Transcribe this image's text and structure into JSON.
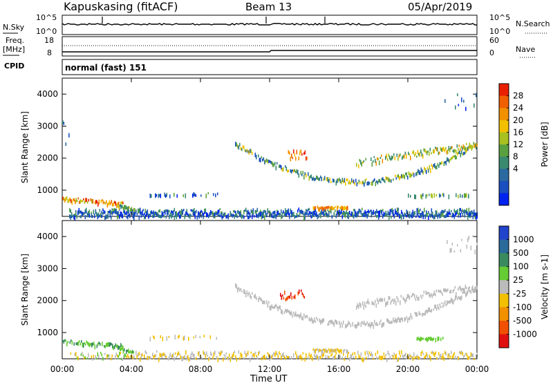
{
  "header": {
    "station": "Kapuskasing (fitACF)",
    "beam": "Beam 13",
    "date": "05/Apr/2019"
  },
  "top_strip": {
    "left_label": "N.Sky",
    "right_label": "N.Search",
    "left_ticks": [
      "10^5",
      "10^0"
    ],
    "right_ticks": [
      "10^5",
      "10^0"
    ]
  },
  "freq_strip": {
    "freq_label": "Freq.",
    "freq_unit": "[MHz]",
    "left_ticks": [
      "18",
      "8"
    ],
    "right_ticks": [
      "60",
      "0"
    ],
    "right_label": "Nave"
  },
  "cpid": {
    "label": "CPID",
    "text": "normal (fast) 151"
  },
  "x_axis": {
    "ticks": [
      "00:00",
      "04:00",
      "08:00",
      "12:00",
      "16:00",
      "20:00",
      "00:00"
    ],
    "label": "Time UT"
  },
  "chart_data": [
    {
      "type": "heatmap",
      "panel": "power",
      "ylabel": "Slant Range [km]",
      "yticks": [
        1000,
        2000,
        3000,
        4000
      ],
      "ylim": [
        180,
        4500
      ],
      "xlim_hours": [
        0,
        24
      ],
      "colorbar": {
        "label": "Power [dB]",
        "ticks": [
          "28",
          "24",
          "20",
          "16",
          "12",
          "8",
          "4"
        ],
        "colors": [
          "#0022ee",
          "#1a4fc0",
          "#2a6aa0",
          "#3a8a70",
          "#5aa040",
          "#a8c020",
          "#f2c000",
          "#f29000",
          "#f06000",
          "#e82000"
        ]
      },
      "features": [
        {
          "name": "near-range band",
          "t": [
            0.5,
            24
          ],
          "range_km": [
            200,
            500
          ],
          "power_db": [
            4,
            12
          ]
        },
        {
          "name": "early arc",
          "t": [
            0,
            3.5
          ],
          "range_km": [
            500,
            800
          ],
          "power_db": [
            8,
            24
          ]
        },
        {
          "name": "afternoon band",
          "t": [
            14.5,
            16.5
          ],
          "range_km": [
            450,
            520
          ],
          "power_db": [
            16,
            24
          ]
        },
        {
          "name": "u-shaped arc",
          "t": [
            10,
            24
          ],
          "range_km": [
            1200,
            2500
          ],
          "power_db": [
            8,
            20
          ]
        }
      ]
    },
    {
      "type": "heatmap",
      "panel": "velocity",
      "ylabel": "Slant Range [km]",
      "yticks": [
        1000,
        2000,
        3000,
        4000
      ],
      "ylim": [
        180,
        4500
      ],
      "xlim_hours": [
        0,
        24
      ],
      "colorbar": {
        "label": "Velocity [m s-1]",
        "ticks": [
          "1000",
          "500",
          "100",
          "25",
          "-25",
          "-100",
          "-500",
          "-1000"
        ],
        "colors": [
          "#2244cc",
          "#2a6a9a",
          "#3a8a60",
          "#66cc33",
          "#bbbbbb",
          "#f2c000",
          "#f29000",
          "#f05000",
          "#e01010"
        ]
      },
      "features": [
        {
          "name": "early arc",
          "t": [
            0,
            3.5
          ],
          "range_km": [
            500,
            800
          ],
          "velocity": [
            25,
            100
          ]
        },
        {
          "name": "near-range band",
          "t": [
            4,
            24
          ],
          "range_km": [
            200,
            500
          ],
          "velocity": [
            -100,
            -25
          ]
        },
        {
          "name": "noon patch",
          "t": [
            12.5,
            14
          ],
          "range_km": [
            2000,
            2400
          ],
          "velocity": [
            -500,
            -1000
          ]
        },
        {
          "name": "u-shaped arc",
          "t": [
            10,
            24
          ],
          "range_km": [
            1200,
            2500
          ],
          "velocity": [
            -25,
            25
          ]
        }
      ]
    }
  ]
}
